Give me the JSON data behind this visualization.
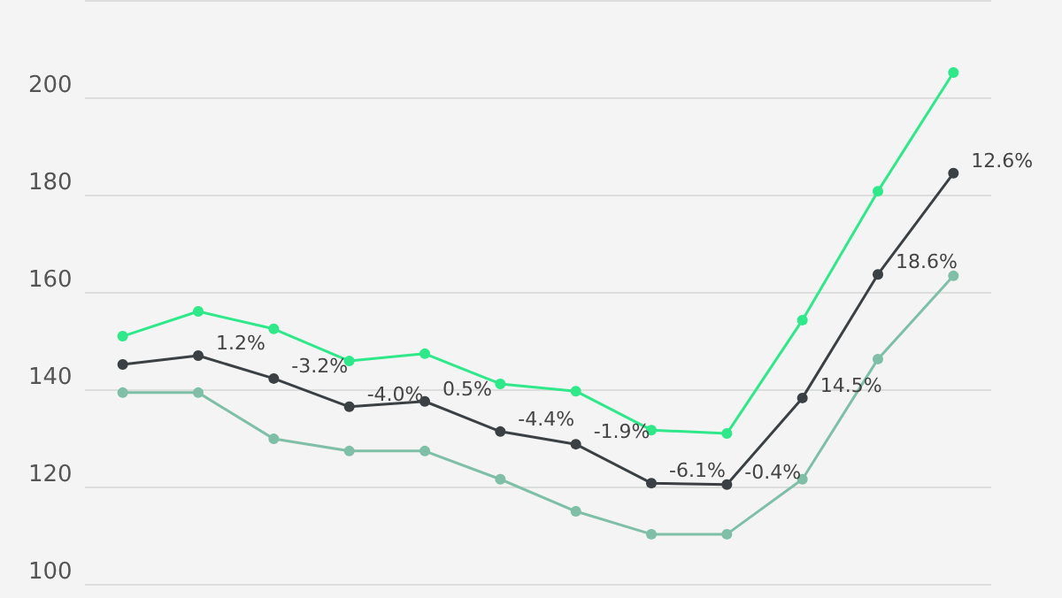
{
  "chart_data": {
    "type": "line",
    "categories": [
      null,
      null,
      null,
      null,
      null,
      null,
      null,
      null,
      null,
      null,
      null,
      null
    ],
    "series": [
      {
        "color": "#2ee88a",
        "values": [
          150.9,
          156,
          152.4,
          145.8,
          147.3,
          141.1,
          139.6,
          131.6,
          130.9,
          154.2,
          180.7,
          205.1
        ]
      },
      {
        "color": "#3a4043",
        "values": [
          145.1,
          146.9,
          142.2,
          136.4,
          137.5,
          131.3,
          128.7,
          120.7,
          120.4,
          138.2,
          163.6,
          184.4
        ]
      },
      {
        "color": "#7fbfa8",
        "values": [
          139.3,
          139.3,
          129.8,
          127.3,
          127.3,
          121.5,
          114.9,
          110.2,
          110.2,
          121.5,
          146.2,
          163.3
        ]
      }
    ],
    "annotations": [
      "1.2%",
      "-3.2%",
      "-4.0%",
      "0.5%",
      "-4.4%",
      "-1.9%",
      "-6.1%",
      "-0.4%",
      "14.5%",
      "18.6%",
      "12.6%"
    ],
    "ylim": [
      100,
      220
    ],
    "yticks": [
      100,
      120,
      140,
      160,
      180,
      200,
      {
        "value": 220,
        "label": null
      }
    ],
    "grid": "y",
    "marker": "circle",
    "line_style": "solid"
  }
}
